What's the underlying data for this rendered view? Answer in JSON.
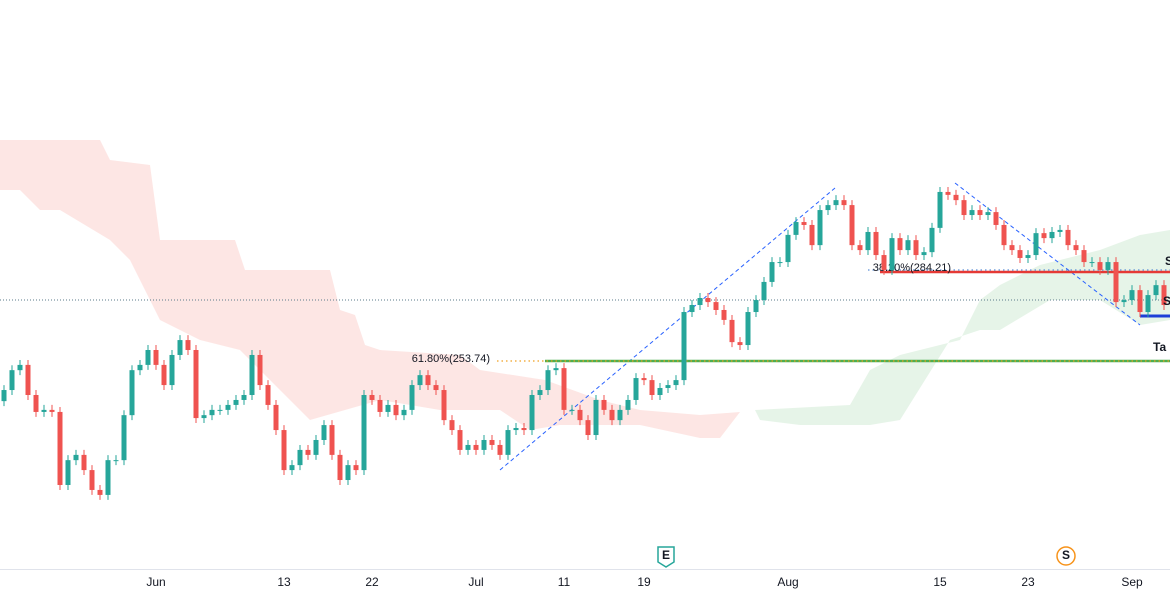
{
  "chart_data": {
    "type": "candlestick",
    "categories": [
      null,
      null,
      null,
      null,
      null,
      null,
      null,
      null,
      null,
      null,
      null,
      null,
      null,
      null,
      null,
      null,
      null,
      null,
      null,
      "Jun",
      null,
      null,
      null,
      null,
      null,
      null,
      null,
      null,
      null,
      null,
      null,
      null,
      null,
      null,
      null,
      "13",
      null,
      null,
      null,
      null,
      null,
      null,
      null,
      null,
      null,
      null,
      "22",
      null,
      null,
      null,
      null,
      null,
      null,
      null,
      null,
      null,
      null,
      null,
      null,
      "Jul",
      null,
      null,
      null,
      null,
      null,
      null,
      null,
      null,
      null,
      null,
      "11",
      null,
      null,
      null,
      null,
      null,
      null,
      null,
      null,
      null,
      "19",
      null,
      null,
      null,
      null,
      null,
      null,
      null,
      null,
      null,
      null,
      null,
      null,
      null,
      null,
      null,
      null,
      null,
      "Aug",
      null,
      null,
      null,
      null,
      null,
      null,
      null,
      null,
      null,
      null,
      null,
      null,
      null,
      null,
      null,
      null,
      null,
      null,
      "15",
      null,
      null,
      null,
      null,
      null,
      null,
      null,
      null,
      null,
      null,
      "23",
      null,
      null,
      null,
      null,
      null,
      null,
      null,
      null,
      null,
      null,
      null,
      null,
      "Sep",
      null,
      null,
      null,
      null
    ],
    "open": [
      240.0,
      243.8,
      250.6,
      252.4,
      242.1,
      236.3,
      237.0,
      236.3,
      211.3,
      219.8,
      221.6,
      216.4,
      209.6,
      207.9,
      219.8,
      219.8,
      235.2,
      250.6,
      252.4,
      257.5,
      252.4,
      245.5,
      255.8,
      260.9,
      257.5,
      234.2,
      235.2,
      237.0,
      237.0,
      238.7,
      240.4,
      242.1,
      255.8,
      245.5,
      238.7,
      230.1,
      216.4,
      218.1,
      223.3,
      221.6,
      226.7,
      231.8,
      221.6,
      213.0,
      218.1,
      216.4,
      242.1,
      240.4,
      236.3,
      238.7,
      235.2,
      237.0,
      245.5,
      248.9,
      245.5,
      243.8,
      233.5,
      230.1,
      223.3,
      225.0,
      223.3,
      226.7,
      225.0,
      221.6,
      230.1,
      230.8,
      230.1,
      242.1,
      243.8,
      250.6,
      251.3,
      237.0,
      237.0,
      233.5,
      228.4,
      240.4,
      237.0,
      233.5,
      237.0,
      240.4,
      247.9,
      247.2,
      242.1,
      244.5,
      245.5,
      247.2,
      270.5,
      272.9,
      275.3,
      273.9,
      271.2,
      267.8,
      260.2,
      259.2,
      270.5,
      274.6,
      280.8,
      287.6,
      287.6,
      296.9,
      301.3,
      300.3,
      293.4,
      305.4,
      307.1,
      308.8,
      307.1,
      293.4,
      291.7,
      297.9,
      290.0,
      284.9,
      295.8,
      291.7,
      295.1,
      290.0,
      291.0,
      299.3,
      311.6,
      310.6,
      308.8,
      303.7,
      305.4,
      303.7,
      304.7,
      300.3,
      293.4,
      291.7,
      289.0,
      290.0,
      297.5,
      295.8,
      297.9,
      298.6,
      293.4,
      291.7,
      287.6,
      287.6,
      284.9,
      287.6,
      273.9,
      274.6,
      278.0,
      270.5,
      276.3,
      279.7
    ],
    "high": [
      245.5,
      252.3,
      254.1,
      254.1,
      243.8,
      238.7,
      238.7,
      238.0,
      221.5,
      223.3,
      223.3,
      218.1,
      211.3,
      221.5,
      221.5,
      236.9,
      252.3,
      254.1,
      259.2,
      259.2,
      254.1,
      257.5,
      262.6,
      262.6,
      259.2,
      236.9,
      238.7,
      238.7,
      240.4,
      242.1,
      243.8,
      257.5,
      257.5,
      247.2,
      240.4,
      231.8,
      219.8,
      225.0,
      225.0,
      228.4,
      233.5,
      233.5,
      223.3,
      219.8,
      219.8,
      243.8,
      243.8,
      242.1,
      240.4,
      240.4,
      238.7,
      247.2,
      250.6,
      250.6,
      247.2,
      245.5,
      235.2,
      231.8,
      226.7,
      226.7,
      228.4,
      228.4,
      226.7,
      231.8,
      232.5,
      232.5,
      243.8,
      245.5,
      252.3,
      253.0,
      253.0,
      238.7,
      238.7,
      235.2,
      242.1,
      242.1,
      238.7,
      238.7,
      242.1,
      249.6,
      249.6,
      248.9,
      246.2,
      247.2,
      248.9,
      272.2,
      274.6,
      277.0,
      277.0,
      275.6,
      272.9,
      269.5,
      261.9,
      272.2,
      276.3,
      282.5,
      289.3,
      289.3,
      298.6,
      303.0,
      303.0,
      302.0,
      307.1,
      308.8,
      310.5,
      310.5,
      308.8,
      295.1,
      299.6,
      299.6,
      291.7,
      297.5,
      297.5,
      296.8,
      296.8,
      292.7,
      301.0,
      313.3,
      313.3,
      312.3,
      310.5,
      307.1,
      307.1,
      306.4,
      306.4,
      302.0,
      295.1,
      293.4,
      291.7,
      299.2,
      299.2,
      299.6,
      300.3,
      300.3,
      295.1,
      293.4,
      289.3,
      289.3,
      289.3,
      289.3,
      276.3,
      279.7,
      279.7,
      278.0,
      281.4,
      281.4
    ],
    "low": [
      238.3,
      242.1,
      248.9,
      240.4,
      234.6,
      234.6,
      234.6,
      209.6,
      209.6,
      218.1,
      214.7,
      207.9,
      206.2,
      206.2,
      218.1,
      218.1,
      233.5,
      248.9,
      250.7,
      250.7,
      243.8,
      243.8,
      254.1,
      255.8,
      232.5,
      232.5,
      233.5,
      235.3,
      235.3,
      237.0,
      238.7,
      240.4,
      243.8,
      237.0,
      228.4,
      214.7,
      214.7,
      216.4,
      219.9,
      219.9,
      225.0,
      219.9,
      211.3,
      211.3,
      214.7,
      214.7,
      238.7,
      234.6,
      234.6,
      233.5,
      233.5,
      235.3,
      243.8,
      243.8,
      242.1,
      231.8,
      228.4,
      221.6,
      221.6,
      221.6,
      221.6,
      223.3,
      219.9,
      219.9,
      228.4,
      228.4,
      228.4,
      240.4,
      242.1,
      248.9,
      235.3,
      235.3,
      231.8,
      226.7,
      226.7,
      235.3,
      231.8,
      231.8,
      235.3,
      238.7,
      245.5,
      240.4,
      240.4,
      242.8,
      243.8,
      245.5,
      268.8,
      271.2,
      272.2,
      269.5,
      266.1,
      258.5,
      257.5,
      257.5,
      268.8,
      272.9,
      279.1,
      285.9,
      285.9,
      295.2,
      298.6,
      291.7,
      291.7,
      303.7,
      305.4,
      305.4,
      291.7,
      290.0,
      290.0,
      288.3,
      283.2,
      283.2,
      290.0,
      290.0,
      288.3,
      288.3,
      289.3,
      297.6,
      308.9,
      307.1,
      302.0,
      302.0,
      302.0,
      302.0,
      298.6,
      291.7,
      290.0,
      287.3,
      287.3,
      288.3,
      294.1,
      294.1,
      296.2,
      291.7,
      290.0,
      285.9,
      285.9,
      283.2,
      283.2,
      272.2,
      272.2,
      272.9,
      268.8,
      268.8,
      274.6,
      271.2
    ],
    "close": [
      243.8,
      250.6,
      252.4,
      242.1,
      236.3,
      237.0,
      236.3,
      211.3,
      219.8,
      221.6,
      216.4,
      209.6,
      207.9,
      219.8,
      219.8,
      235.2,
      250.6,
      252.4,
      257.5,
      252.4,
      245.5,
      255.8,
      260.9,
      257.5,
      234.2,
      235.2,
      237.0,
      237.0,
      238.7,
      240.4,
      242.1,
      255.8,
      245.5,
      238.7,
      230.1,
      216.4,
      218.1,
      223.3,
      221.6,
      226.7,
      231.8,
      221.6,
      213.0,
      218.1,
      216.4,
      242.1,
      240.4,
      236.3,
      238.7,
      235.2,
      237.0,
      245.5,
      248.9,
      245.5,
      243.8,
      233.5,
      230.1,
      223.3,
      225.0,
      223.3,
      226.7,
      225.0,
      221.6,
      230.1,
      230.8,
      230.1,
      242.1,
      243.8,
      250.6,
      251.3,
      237.0,
      237.0,
      233.5,
      228.4,
      240.4,
      237.0,
      233.5,
      237.0,
      240.4,
      247.9,
      247.2,
      242.1,
      244.5,
      245.5,
      247.2,
      270.5,
      272.9,
      275.3,
      273.9,
      271.2,
      267.8,
      260.2,
      259.2,
      270.5,
      274.6,
      280.8,
      287.6,
      287.6,
      296.9,
      301.3,
      300.3,
      293.4,
      305.4,
      307.1,
      308.8,
      307.1,
      293.4,
      291.7,
      297.9,
      290.0,
      284.9,
      295.8,
      291.7,
      295.1,
      290.0,
      291.0,
      299.3,
      311.6,
      310.6,
      308.8,
      303.7,
      305.4,
      303.7,
      304.7,
      300.3,
      293.4,
      291.7,
      289.0,
      290.0,
      297.5,
      295.8,
      297.9,
      298.6,
      293.4,
      291.7,
      287.6,
      287.6,
      284.9,
      287.6,
      273.9,
      274.6,
      278.0,
      270.5,
      276.3,
      279.7,
      272.9
    ],
    "up_color": "#26a69a",
    "down_color": "#ef5350",
    "ylim": [
      182.2,
      377.3
    ],
    "fib_levels": [
      {
        "value": 253.74,
        "label": "61.80%(253.74)",
        "color": "#f0a020",
        "line_color": "#4caf50"
      },
      {
        "value": 284.21,
        "label": "38.20%(284.21)",
        "color": "#5b8fd6",
        "line_color": "#e53935"
      }
    ],
    "annotations": [
      {
        "text": "S",
        "color": "#e0683a"
      },
      {
        "text": "S",
        "color": "#1e3fd8"
      },
      {
        "text": "Ta",
        "color": "#4caf50"
      }
    ],
    "events": [
      {
        "text": "E",
        "color": "#26a69a"
      },
      {
        "text": "S",
        "color": "#f7931a"
      }
    ]
  }
}
